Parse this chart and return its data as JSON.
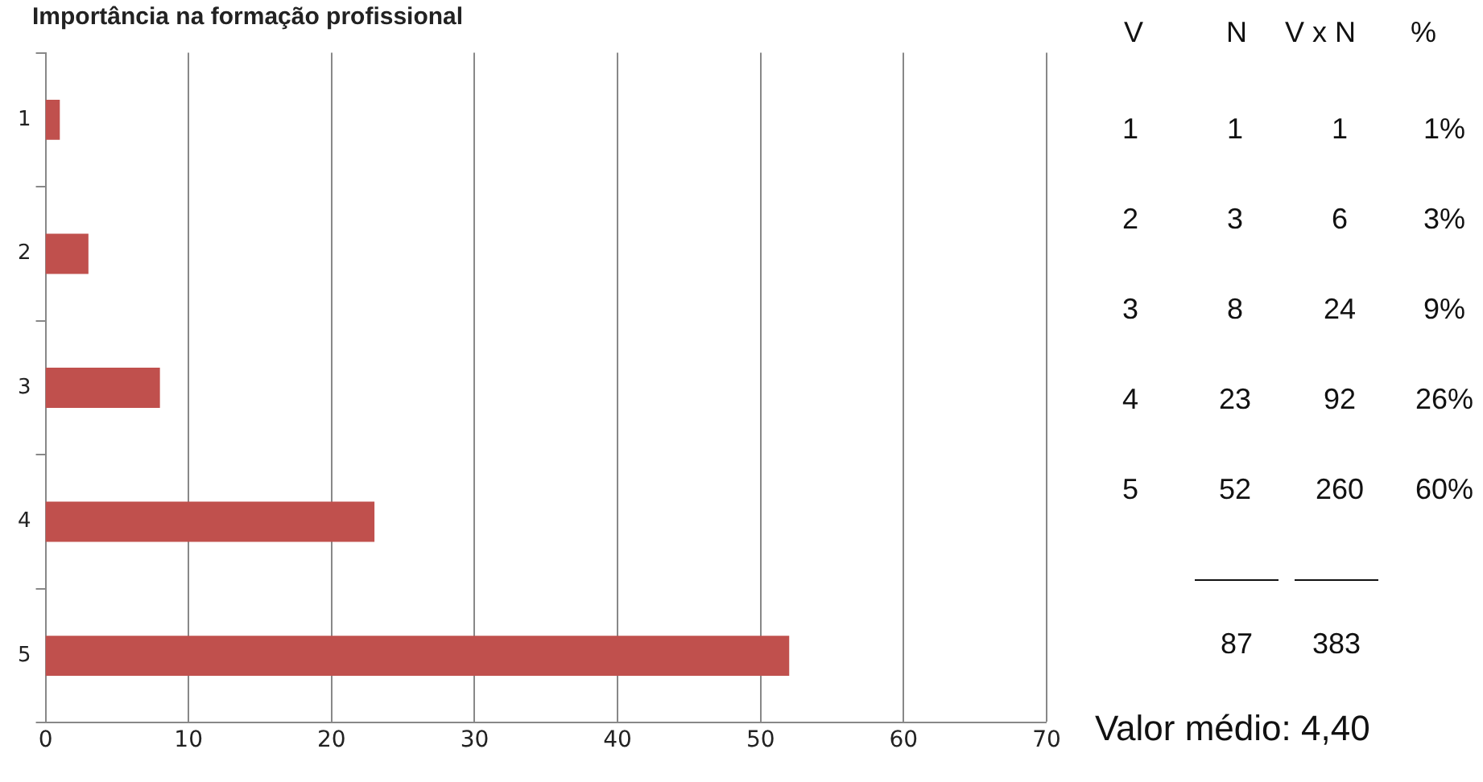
{
  "chart_data": {
    "type": "bar",
    "orientation": "horizontal",
    "title": "Importância na formação profissional",
    "categories": [
      "1",
      "2",
      "3",
      "4",
      "5"
    ],
    "values": [
      1,
      3,
      8,
      23,
      52
    ],
    "color": "#c0504d",
    "xlim": [
      0,
      70
    ],
    "xticks": [
      0,
      10,
      20,
      30,
      40,
      50,
      60,
      70
    ],
    "grid": "x",
    "legend": false,
    "annotations": [
      "V",
      "N",
      "V x N",
      "%",
      "1 1 1 1%",
      "2 3 6 3%",
      "3 8 24 9%",
      "4 23 92 26%",
      "5 52 260 60%",
      "87",
      "383",
      "Valor médio: 4,40"
    ]
  }
}
